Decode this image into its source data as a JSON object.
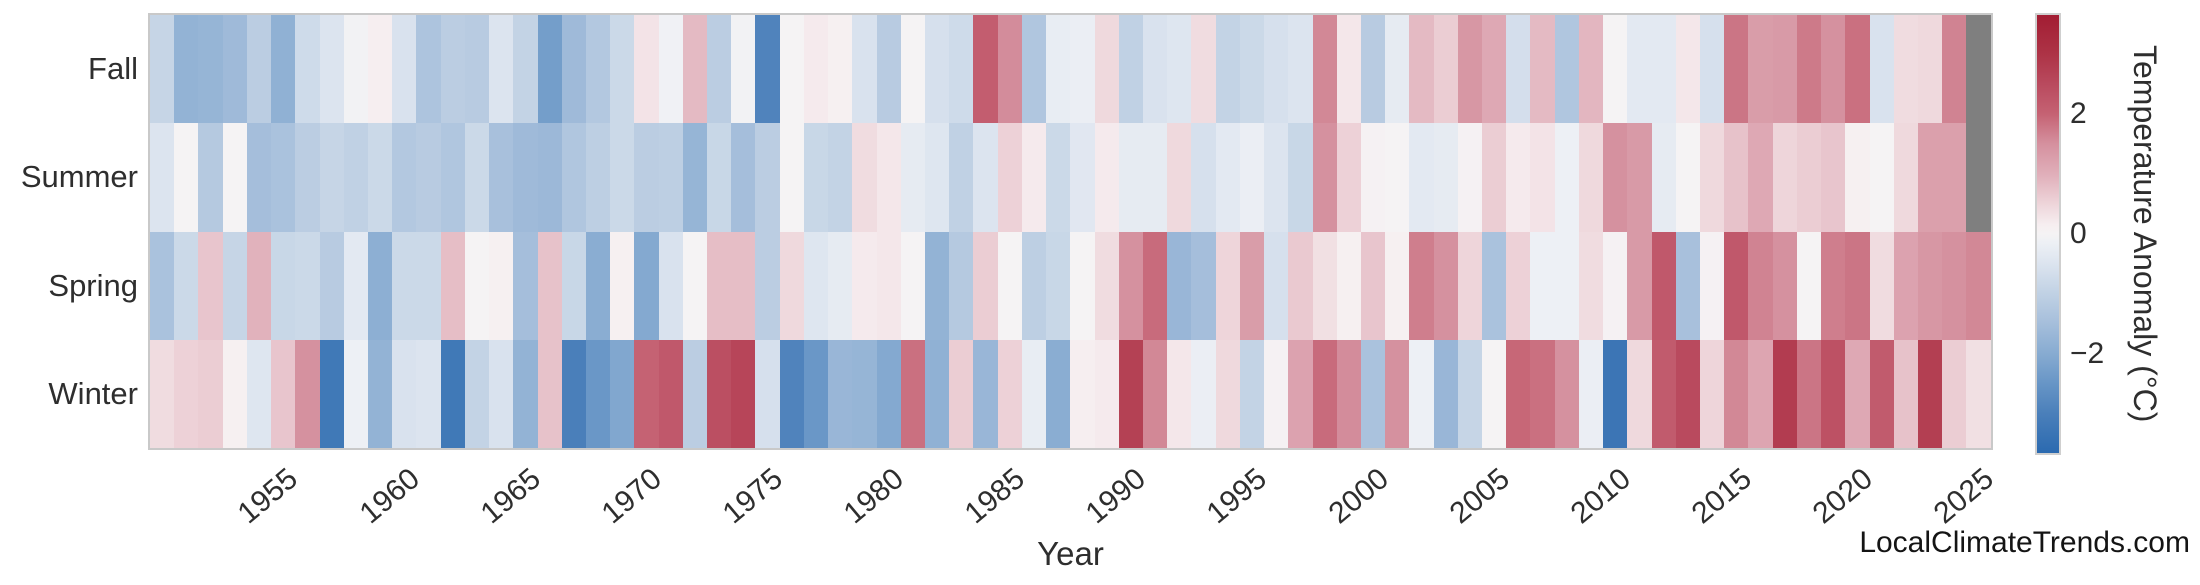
{
  "figure": {
    "watermark": "LocalClimateTrends.com",
    "background": "#ffffff"
  },
  "chart_data": {
    "type": "heatmap",
    "title": "",
    "xlabel": "Year",
    "ylabel": "",
    "x_start_year": 1950,
    "x_end_year": 2025,
    "x_ticks": [
      1955,
      1960,
      1965,
      1970,
      1975,
      1980,
      1985,
      1990,
      1995,
      2000,
      2005,
      2010,
      2015,
      2020,
      2025
    ],
    "y_categories": [
      "Fall",
      "Summer",
      "Spring",
      "Winter"
    ],
    "grid": false,
    "legend_position": "right-colorbar",
    "missing_value_color": "#7f7f7f",
    "colorbar": {
      "label": "Temperature Anomaly (°C)",
      "vmin": -3.65,
      "vmax": 3.65,
      "ticks": [
        {
          "value": 2,
          "label": "2"
        },
        {
          "value": 0,
          "label": "0"
        },
        {
          "value": -2,
          "label": "−2"
        }
      ]
    },
    "colormap_stops": [
      [
        -3.65,
        "#2b6ab0"
      ],
      [
        -3.0,
        "#4a7fba"
      ],
      [
        -2.5,
        "#6795c6"
      ],
      [
        -2.0,
        "#87abd1"
      ],
      [
        -1.5,
        "#a5bedb"
      ],
      [
        -1.0,
        "#c0d1e4"
      ],
      [
        -0.5,
        "#dce4ef"
      ],
      [
        -0.15,
        "#edf0f5"
      ],
      [
        0.0,
        "#f5f3f4"
      ],
      [
        0.15,
        "#f6eef0"
      ],
      [
        0.5,
        "#eed5da"
      ],
      [
        1.0,
        "#e0aeb9"
      ],
      [
        1.5,
        "#d5919f"
      ],
      [
        2.0,
        "#c56273"
      ],
      [
        2.5,
        "#b94a5e"
      ],
      [
        3.0,
        "#ad3346"
      ],
      [
        3.65,
        "#a21d33"
      ]
    ],
    "series": [
      {
        "name": "Fall",
        "values": [
          -0.9,
          -1.8,
          -1.75,
          -1.6,
          -1.1,
          -1.85,
          -0.75,
          -0.5,
          -0.05,
          0.15,
          -0.55,
          -1.35,
          -1.1,
          -1.15,
          -0.5,
          -0.95,
          -2.3,
          -1.6,
          -1.25,
          -0.8,
          0.3,
          -0.1,
          0.85,
          -1.1,
          -0.05,
          -2.9,
          0.0,
          0.2,
          0.1,
          -0.55,
          -1.15,
          0.0,
          -0.6,
          -0.75,
          2.1,
          1.55,
          -1.3,
          -0.25,
          -0.2,
          0.45,
          -1.0,
          -0.55,
          -0.45,
          0.4,
          -0.95,
          -0.8,
          -0.6,
          -0.5,
          1.6,
          0.25,
          -1.15,
          -0.3,
          0.85,
          0.6,
          1.4,
          1.1,
          -0.65,
          0.85,
          -1.3,
          0.9,
          0.0,
          -0.35,
          -0.35,
          0.25,
          -0.6,
          1.8,
          1.3,
          1.35,
          1.75,
          1.5,
          1.85,
          -0.55,
          0.4,
          0.45,
          1.65,
          null
        ]
      },
      {
        "name": "Summer",
        "values": [
          -0.5,
          0.0,
          -1.2,
          0.0,
          -1.5,
          -1.4,
          -1.1,
          -0.9,
          -1.0,
          -0.8,
          -1.25,
          -1.15,
          -1.3,
          -0.8,
          -1.45,
          -1.6,
          -1.65,
          -1.3,
          -1.05,
          -0.8,
          -1.1,
          -1.05,
          -1.75,
          -0.85,
          -1.5,
          -1.1,
          0.0,
          -0.85,
          -0.95,
          0.4,
          0.25,
          -0.3,
          -0.45,
          -1.0,
          -0.5,
          0.55,
          0.2,
          -0.8,
          -0.4,
          0.2,
          -0.3,
          -0.3,
          0.45,
          -0.6,
          -0.35,
          -0.2,
          -0.5,
          -0.85,
          1.5,
          0.55,
          0.05,
          0.0,
          -0.35,
          -0.3,
          0.05,
          0.6,
          0.2,
          0.3,
          -0.15,
          0.45,
          1.5,
          1.35,
          -0.3,
          0.0,
          0.45,
          0.75,
          1.1,
          0.5,
          0.6,
          0.7,
          0.1,
          0.0,
          0.45,
          1.25,
          1.25,
          null
        ]
      },
      {
        "name": "Spring",
        "values": [
          -1.4,
          -0.8,
          0.7,
          -0.9,
          0.95,
          -0.85,
          -0.8,
          -1.15,
          -0.35,
          -1.9,
          -0.8,
          -0.8,
          0.8,
          0.0,
          0.1,
          -1.5,
          0.75,
          -0.85,
          -1.95,
          0.1,
          -2.05,
          -0.55,
          0.0,
          0.8,
          0.8,
          -1.1,
          0.45,
          -0.45,
          -0.3,
          0.2,
          0.25,
          0.0,
          -1.8,
          -1.2,
          0.6,
          0.0,
          -1.05,
          -0.85,
          0.0,
          0.4,
          1.5,
          1.9,
          -1.7,
          -1.5,
          0.5,
          1.3,
          -0.6,
          0.65,
          0.35,
          0.1,
          0.7,
          0.1,
          1.7,
          1.5,
          0.5,
          -1.4,
          0.55,
          -0.15,
          -0.15,
          0.4,
          0.05,
          1.35,
          2.2,
          -1.45,
          0.05,
          2.2,
          1.65,
          1.5,
          0.0,
          1.7,
          1.8,
          0.4,
          1.2,
          1.4,
          1.5,
          1.6
        ]
      },
      {
        "name": "Winter",
        "values": [
          0.4,
          0.55,
          0.6,
          0.1,
          -0.45,
          0.7,
          1.5,
          -3.2,
          -0.15,
          -1.8,
          -0.55,
          -0.5,
          -3.2,
          -0.95,
          -0.55,
          -1.8,
          0.75,
          -3.0,
          -2.45,
          -2.1,
          2.0,
          2.2,
          -1.1,
          2.4,
          2.6,
          -0.6,
          -2.9,
          -2.45,
          -1.7,
          -1.75,
          -2.05,
          1.85,
          -1.85,
          0.6,
          -1.7,
          0.55,
          -0.25,
          -1.95,
          0.15,
          0.2,
          2.7,
          1.6,
          0.25,
          -0.2,
          0.45,
          -0.95,
          0.05,
          1.2,
          1.9,
          1.55,
          -1.4,
          1.5,
          -0.15,
          -1.7,
          -0.9,
          0.0,
          1.95,
          1.85,
          1.5,
          -0.2,
          -3.3,
          0.45,
          2.15,
          2.5,
          0.5,
          1.6,
          1.15,
          2.8,
          1.8,
          2.35,
          1.1,
          2.15,
          0.75,
          2.75,
          0.6,
          0.35
        ]
      }
    ]
  }
}
